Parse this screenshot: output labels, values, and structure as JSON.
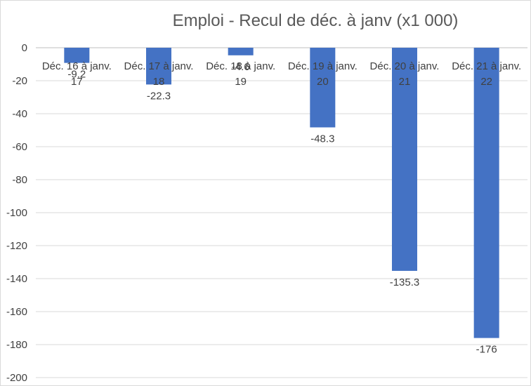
{
  "chart_data": {
    "type": "bar",
    "title": "Emploi - Recul de déc. à janv (x1 000)",
    "xlabel": "",
    "ylabel": "",
    "categories": [
      [
        "Déc. 16 à janv.",
        "17"
      ],
      [
        "Déc. 17 à janv.",
        "18"
      ],
      [
        "Déc. 18 à janv.",
        "19"
      ],
      [
        "Déc. 19 à janv.",
        "20"
      ],
      [
        "Déc. 20 à janv.",
        "21"
      ],
      [
        "Déc. 21 à janv.",
        "22"
      ]
    ],
    "values": [
      -9.2,
      -22.3,
      -4.6,
      -48.3,
      -135.3,
      -176
    ],
    "value_labels": [
      "-9.2",
      "-22.3",
      "-4.6",
      "-48.3",
      "-135.3",
      "-176"
    ],
    "y_ticks": [
      "0",
      "-20",
      "-40",
      "-60",
      "-80",
      "-100",
      "-120",
      "-140",
      "-160",
      "-180",
      "-200"
    ],
    "ylim": [
      -200,
      0
    ],
    "grid": true,
    "legend": "none",
    "bar_color": "#4472C4"
  }
}
